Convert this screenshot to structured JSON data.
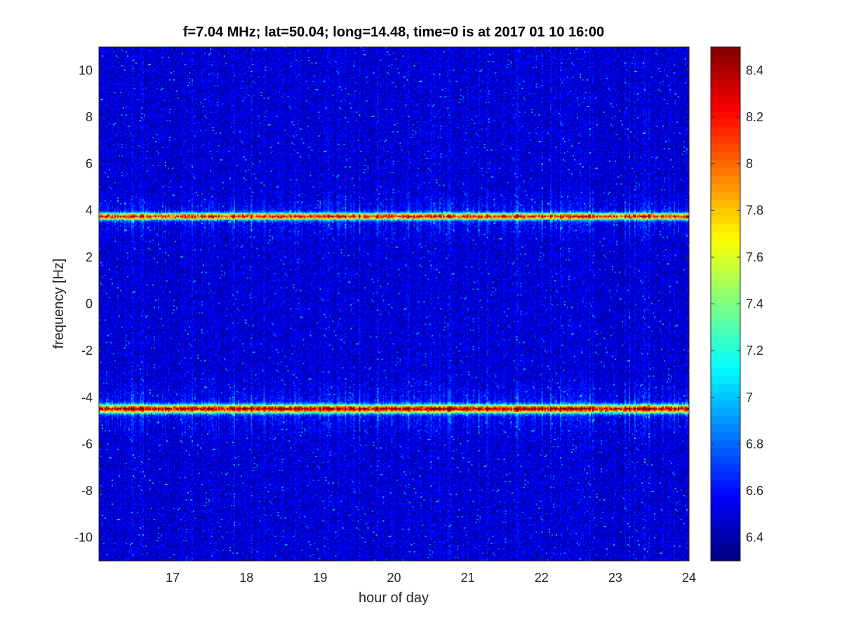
{
  "chart_data": {
    "type": "heatmap",
    "title": "f=7.04 MHz;  lat=50.04; long=14.48, time=0 is at 2017 01 10 16:00",
    "xlabel": "hour of day",
    "ylabel": "frequency [Hz]",
    "xlim": [
      16.0,
      24.0
    ],
    "ylim": [
      -11.0,
      11.0
    ],
    "xticks": [
      17,
      18,
      19,
      20,
      21,
      22,
      23,
      24
    ],
    "yticks": [
      -10,
      -8,
      -6,
      -4,
      -2,
      0,
      2,
      4,
      6,
      8,
      10
    ],
    "colormap": "jet",
    "clim": [
      6.3,
      8.5
    ],
    "colorbar_ticks": [
      6.4,
      6.6,
      6.8,
      7,
      7.2,
      7.4,
      7.6,
      7.8,
      8,
      8.2,
      8.4
    ],
    "background_level": 6.45,
    "bands": [
      {
        "frequency": 3.75,
        "peak": 8.2,
        "width": 0.2,
        "x_range": [
          16.0,
          24.0
        ]
      },
      {
        "frequency": -4.5,
        "peak": 8.4,
        "width": 0.25,
        "x_range": [
          16.0,
          24.0
        ]
      }
    ]
  }
}
